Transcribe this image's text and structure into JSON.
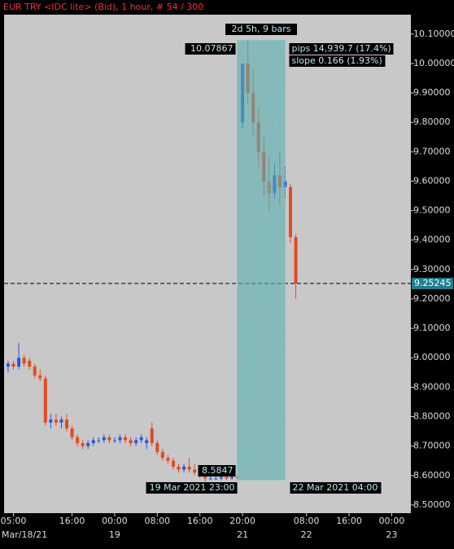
{
  "chart_data": {
    "type": "candlestick",
    "title": "EUR TRY <IDC lite> (Bid), 1 hour, # 54 / 300",
    "up_color": "#2a55d8",
    "down_color": "#e8481e",
    "open": [
      8.97,
      8.98,
      8.97,
      9.0,
      8.99,
      8.97,
      8.94,
      8.93,
      8.78,
      8.79,
      8.78,
      8.79,
      8.76,
      8.73,
      8.71,
      8.7,
      8.71,
      8.72,
      8.72,
      8.73,
      8.72,
      8.72,
      8.73,
      8.72,
      8.71,
      8.72,
      8.71,
      8.76,
      8.71,
      8.68,
      8.66,
      8.65,
      8.63,
      8.62,
      8.63,
      8.62,
      8.61,
      8.6,
      8.59,
      8.59,
      8.59,
      8.595,
      8.59,
      8.595,
      9.8,
      10.0,
      9.9,
      9.8,
      9.7,
      9.6,
      9.56,
      9.62,
      9.58,
      9.58,
      9.41
    ],
    "high": [
      8.99,
      8.99,
      9.05,
      9.01,
      9.0,
      8.98,
      8.96,
      8.94,
      8.81,
      8.81,
      8.8,
      8.81,
      8.77,
      8.74,
      8.72,
      8.72,
      8.73,
      8.73,
      8.74,
      8.74,
      8.73,
      8.74,
      8.74,
      8.73,
      8.73,
      8.74,
      8.73,
      8.78,
      8.72,
      8.69,
      8.67,
      8.66,
      8.64,
      8.64,
      8.66,
      8.64,
      8.62,
      8.61,
      8.6,
      8.6,
      8.6,
      8.6,
      8.6,
      8.6,
      10.0,
      10.07867,
      9.98,
      9.85,
      9.75,
      9.68,
      9.66,
      9.7,
      9.65,
      9.59,
      9.42
    ],
    "low": [
      8.95,
      8.96,
      8.96,
      8.97,
      8.96,
      8.93,
      8.92,
      8.77,
      8.76,
      8.77,
      8.76,
      8.75,
      8.72,
      8.7,
      8.69,
      8.69,
      8.7,
      8.71,
      8.71,
      8.71,
      8.71,
      8.71,
      8.71,
      8.7,
      8.7,
      8.71,
      8.69,
      8.7,
      8.67,
      8.65,
      8.64,
      8.62,
      8.61,
      8.61,
      8.61,
      8.6,
      8.59,
      8.58,
      8.585,
      8.585,
      8.585,
      8.585,
      8.585,
      8.5847,
      9.78,
      9.86,
      9.75,
      9.65,
      9.55,
      9.5,
      9.54,
      9.52,
      9.54,
      9.39,
      9.2
    ],
    "close": [
      8.98,
      8.97,
      9.0,
      8.98,
      8.97,
      8.94,
      8.93,
      8.78,
      8.79,
      8.78,
      8.79,
      8.76,
      8.73,
      8.71,
      8.7,
      8.71,
      8.72,
      8.72,
      8.73,
      8.72,
      8.72,
      8.73,
      8.72,
      8.71,
      8.72,
      8.73,
      8.72,
      8.71,
      8.68,
      8.66,
      8.65,
      8.63,
      8.62,
      8.63,
      8.62,
      8.61,
      8.6,
      8.59,
      8.59,
      8.59,
      8.595,
      8.59,
      8.595,
      8.59,
      10.0,
      9.9,
      9.8,
      9.7,
      9.6,
      9.56,
      9.62,
      9.58,
      9.6,
      9.41,
      9.25245
    ],
    "xlim": [
      -0.76,
      75.6
    ],
    "ylim": [
      8.472,
      10.166
    ],
    "yticks": [
      {
        "value": 10.1,
        "label": "10.10000"
      },
      {
        "value": 10.0,
        "label": "10.00000"
      },
      {
        "value": 9.9,
        "label": "9.90000"
      },
      {
        "value": 9.8,
        "label": "9.80000"
      },
      {
        "value": 9.7,
        "label": "9.70000"
      },
      {
        "value": 9.6,
        "label": "9.60000"
      },
      {
        "value": 9.5,
        "label": "9.50000"
      },
      {
        "value": 9.4,
        "label": "9.40000"
      },
      {
        "value": 9.3,
        "label": "9.30000"
      },
      {
        "value": 9.2,
        "label": "9.20000"
      },
      {
        "value": 9.1,
        "label": "9.10000"
      },
      {
        "value": 9.0,
        "label": "9.00000"
      },
      {
        "value": 8.9,
        "label": "8.90000"
      },
      {
        "value": 8.8,
        "label": "8.80000"
      },
      {
        "value": 8.7,
        "label": "8.70000"
      },
      {
        "value": 8.6,
        "label": "8.60000"
      },
      {
        "value": 8.5,
        "label": "8.50000"
      }
    ],
    "xticks": [
      {
        "value": 1,
        "label": "05:00"
      },
      {
        "value": 12,
        "label": "16:00"
      },
      {
        "value": 20,
        "label": "00:00"
      },
      {
        "value": 28,
        "label": "08:00"
      },
      {
        "value": 36,
        "label": "16:00"
      },
      {
        "value": 44,
        "label": "20:00"
      },
      {
        "value": 56,
        "label": "08:00"
      },
      {
        "value": 64,
        "label": "16:00"
      },
      {
        "value": 72,
        "label": "00:00"
      }
    ],
    "xdates": [
      {
        "value": 1,
        "label": "Mar/18/21"
      },
      {
        "value": 20,
        "label": "19"
      },
      {
        "value": 44,
        "label": "21"
      },
      {
        "value": 56,
        "label": "22"
      },
      {
        "value": 72,
        "label": "23"
      }
    ],
    "last_price": 9.25245,
    "measure": {
      "from_bar": 43,
      "to_bar": 52,
      "high": 10.07867,
      "low": 8.5847,
      "span_label": "2d 5h, 9 bars",
      "pips_label": "pips 14,939.7 (17.4%)",
      "slope_label": "slope 0.166 (1.93%)",
      "from_label": "19 Mar 2021 23:00",
      "to_label": "22 Mar 2021 04:00"
    }
  }
}
